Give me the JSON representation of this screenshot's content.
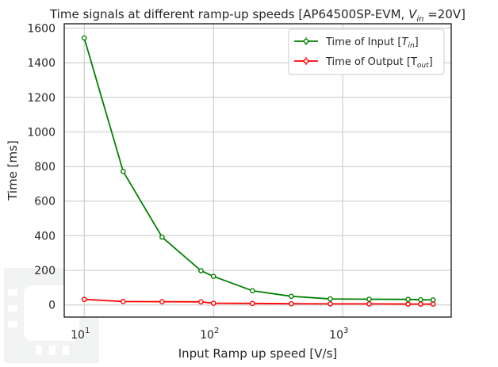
{
  "chart_data": {
    "type": "line",
    "title": "Time signals at different ramp-up speeds [AP64500SP-EVM, V_in =20V]",
    "title_parts": {
      "prefix": "Time signals at different ramp-up speeds [AP64500SP-EVM, ",
      "var": "V",
      "sub": "in",
      "suffix": " =20V]"
    },
    "xlabel": "Input Ramp up speed [V/s]",
    "ylabel": "Time [ms]",
    "xscale": "log",
    "xlim": [
      7,
      6900
    ],
    "ylim": [
      -70,
      1625
    ],
    "y_ticks": [
      0,
      200,
      400,
      600,
      800,
      1000,
      1200,
      1400,
      1600
    ],
    "x_ticks": [
      {
        "value": 10,
        "base": "10",
        "exp": "1"
      },
      {
        "value": 100,
        "base": "10",
        "exp": "2"
      },
      {
        "value": 1000,
        "base": "10",
        "exp": "3"
      }
    ],
    "grid": true,
    "legend_position": "top-right",
    "x": [
      10,
      20,
      40,
      80,
      100,
      200,
      400,
      800,
      1600,
      3200,
      4000,
      5000
    ],
    "series": [
      {
        "name": "Time of Input [T_in]",
        "legend": {
          "prefix": "Time of Input [",
          "var": "T",
          "sub": "in",
          "suffix": "]"
        },
        "color": "#008000",
        "values": [
          1543,
          772,
          392,
          198,
          165,
          82,
          50,
          35,
          33,
          32,
          30,
          29
        ]
      },
      {
        "name": "Time of Output [T_out]",
        "legend": {
          "prefix": "Time of Output [T",
          "var": "",
          "sub": "out",
          "suffix": "]"
        },
        "color": "#ff0000",
        "values": [
          32,
          20,
          19,
          18,
          10,
          9,
          7,
          6,
          6,
          5,
          5,
          5
        ]
      }
    ]
  }
}
